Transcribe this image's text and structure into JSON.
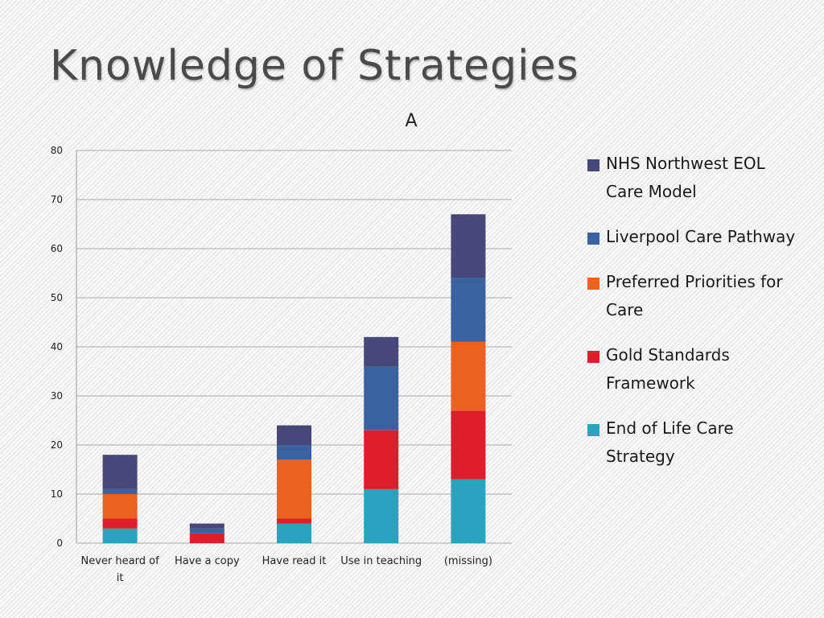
{
  "slide": {
    "title": "Knowledge of Strategies"
  },
  "chart_data": {
    "type": "bar",
    "stacked": true,
    "title": "A",
    "xlabel": "",
    "ylabel": "",
    "categories": [
      "Never heard of it",
      "Have a copy",
      "Have read it",
      "Use in teaching",
      "(missing)"
    ],
    "ylim": [
      0,
      80
    ],
    "yticks": [
      "0",
      "10",
      "20",
      "30",
      "40",
      "50",
      "60",
      "70",
      "80"
    ],
    "grid": true,
    "legend_position": "right",
    "series": [
      {
        "name": "End of Life Care Strategy",
        "color": "#2ba3bf",
        "values": [
          3,
          0,
          4,
          11,
          13
        ]
      },
      {
        "name": "Gold Standards Framework",
        "color": "#dc1f2a",
        "values": [
          2,
          2,
          1,
          12,
          14
        ]
      },
      {
        "name": "Preferred Priorities for Care",
        "color": "#ea621f",
        "values": [
          5,
          0,
          12,
          0,
          14
        ]
      },
      {
        "name": "Liverpool Care Pathway",
        "color": "#3a62a0",
        "values": [
          1,
          1,
          3,
          13,
          13
        ]
      },
      {
        "name": "NHS Northwest EOL Care Model",
        "color": "#454878",
        "values": [
          7,
          1,
          4,
          6,
          13
        ]
      }
    ]
  }
}
